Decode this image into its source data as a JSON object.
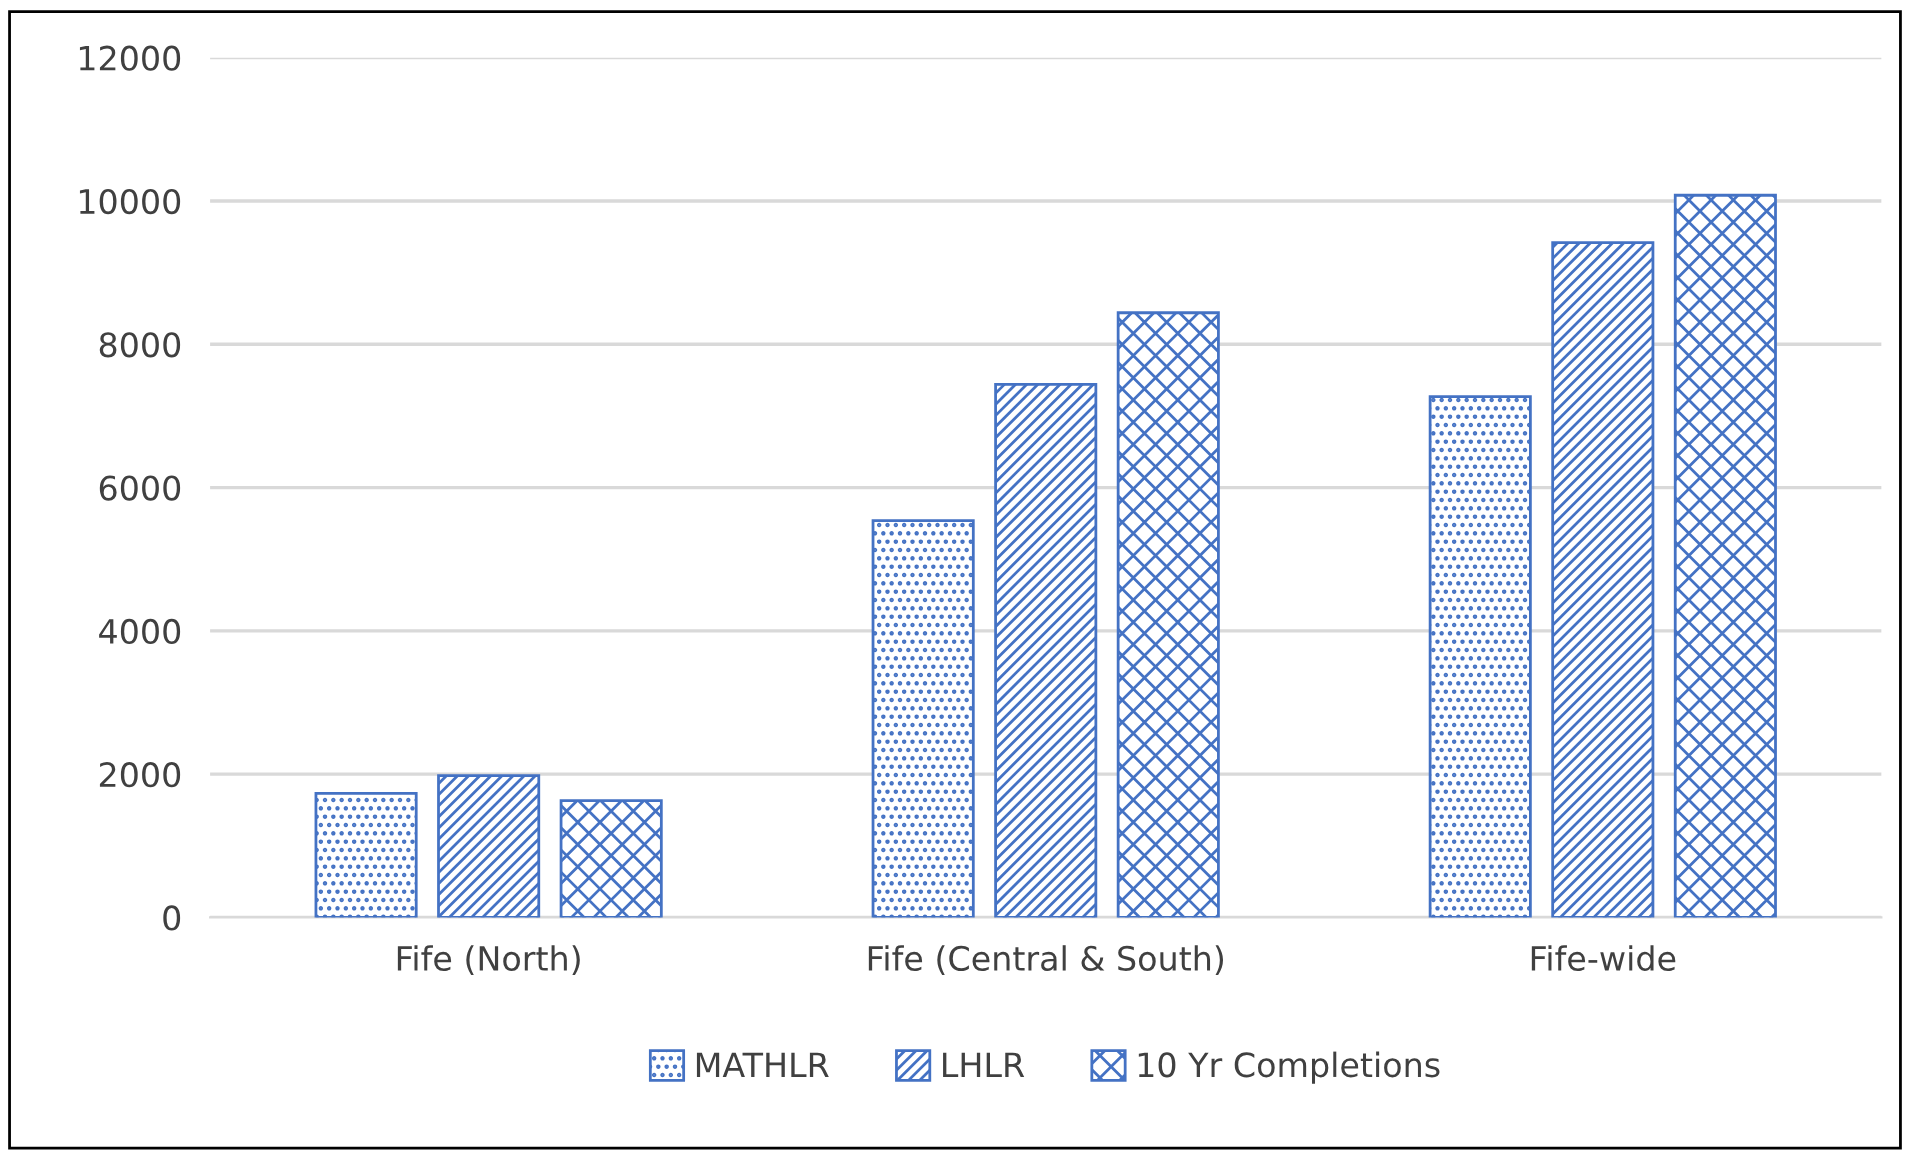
{
  "chart_data": {
    "type": "bar",
    "categories": [
      "Fife (North)",
      "Fife (Central & South)",
      "Fife-wide"
    ],
    "series": [
      {
        "name": "MATHLR",
        "color": "#4472c4",
        "values": [
          1730,
          5540,
          7270
        ]
      },
      {
        "name": "LHLR",
        "color": "#4472c4",
        "values": [
          1980,
          7440,
          9420
        ]
      },
      {
        "name": "10 Yr Completions",
        "color": "#4472c4",
        "values": [
          1630,
          8440,
          10080
        ]
      }
    ],
    "ylim": [
      0,
      12000
    ],
    "yticks": [
      0,
      2000,
      4000,
      6000,
      8000,
      10000,
      12000
    ],
    "grid": "y",
    "legend": "bottom"
  }
}
